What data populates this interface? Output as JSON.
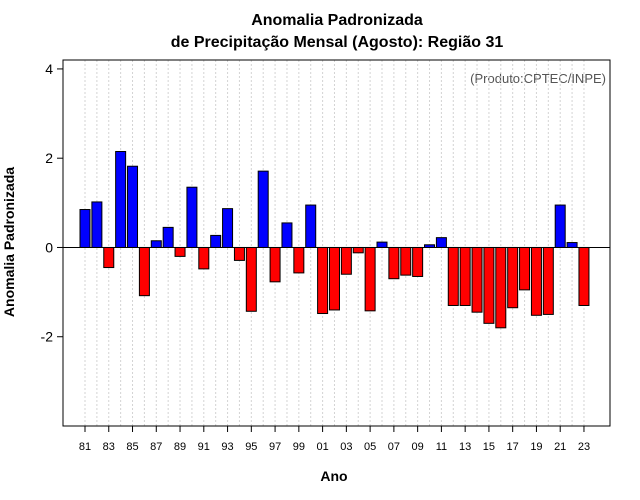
{
  "chart_data": {
    "type": "bar",
    "title_line1": "Anomalia Padronizada",
    "title_line2": "de Precipitação Mensal (Agosto): Região 31",
    "credit": "(Produto:CPTEC/INPE)",
    "xlabel": "Ano",
    "ylabel": "Anomalia Padronizada",
    "ylim": [
      -4,
      4.2
    ],
    "yticks": [
      -2,
      0,
      2,
      4
    ],
    "ytick_labels": [
      "-2",
      "0",
      "2",
      "4"
    ],
    "categories": [
      "81",
      "82",
      "83",
      "84",
      "85",
      "86",
      "87",
      "88",
      "89",
      "90",
      "91",
      "92",
      "93",
      "94",
      "95",
      "96",
      "97",
      "98",
      "99",
      "00",
      "01",
      "02",
      "03",
      "04",
      "05",
      "06",
      "07",
      "08",
      "09",
      "10",
      "11",
      "12",
      "13",
      "14",
      "15",
      "16",
      "17",
      "18",
      "19",
      "20",
      "21",
      "22",
      "23"
    ],
    "xtick_labels": [
      "81",
      "83",
      "85",
      "87",
      "89",
      "91",
      "93",
      "95",
      "97",
      "99",
      "01",
      "03",
      "05",
      "07",
      "09",
      "11",
      "13",
      "15",
      "17",
      "19",
      "21",
      "23"
    ],
    "values": [
      0.85,
      1.02,
      -0.45,
      2.15,
      1.82,
      -1.08,
      0.15,
      0.45,
      -0.2,
      1.35,
      -0.48,
      0.27,
      0.87,
      -0.29,
      -1.43,
      1.71,
      -0.77,
      0.55,
      -0.57,
      0.95,
      -1.48,
      -1.4,
      -0.6,
      -0.12,
      -1.42,
      0.12,
      -0.7,
      -0.62,
      -0.65,
      0.06,
      0.22,
      -1.3,
      -1.3,
      -1.45,
      -1.7,
      -1.8,
      -1.35,
      -0.95,
      -1.52,
      -1.5,
      0.95,
      0.11,
      -1.3
    ],
    "positive_color": "#0000ff",
    "negative_color": "#ff0000",
    "grid": "vertical dotted"
  }
}
